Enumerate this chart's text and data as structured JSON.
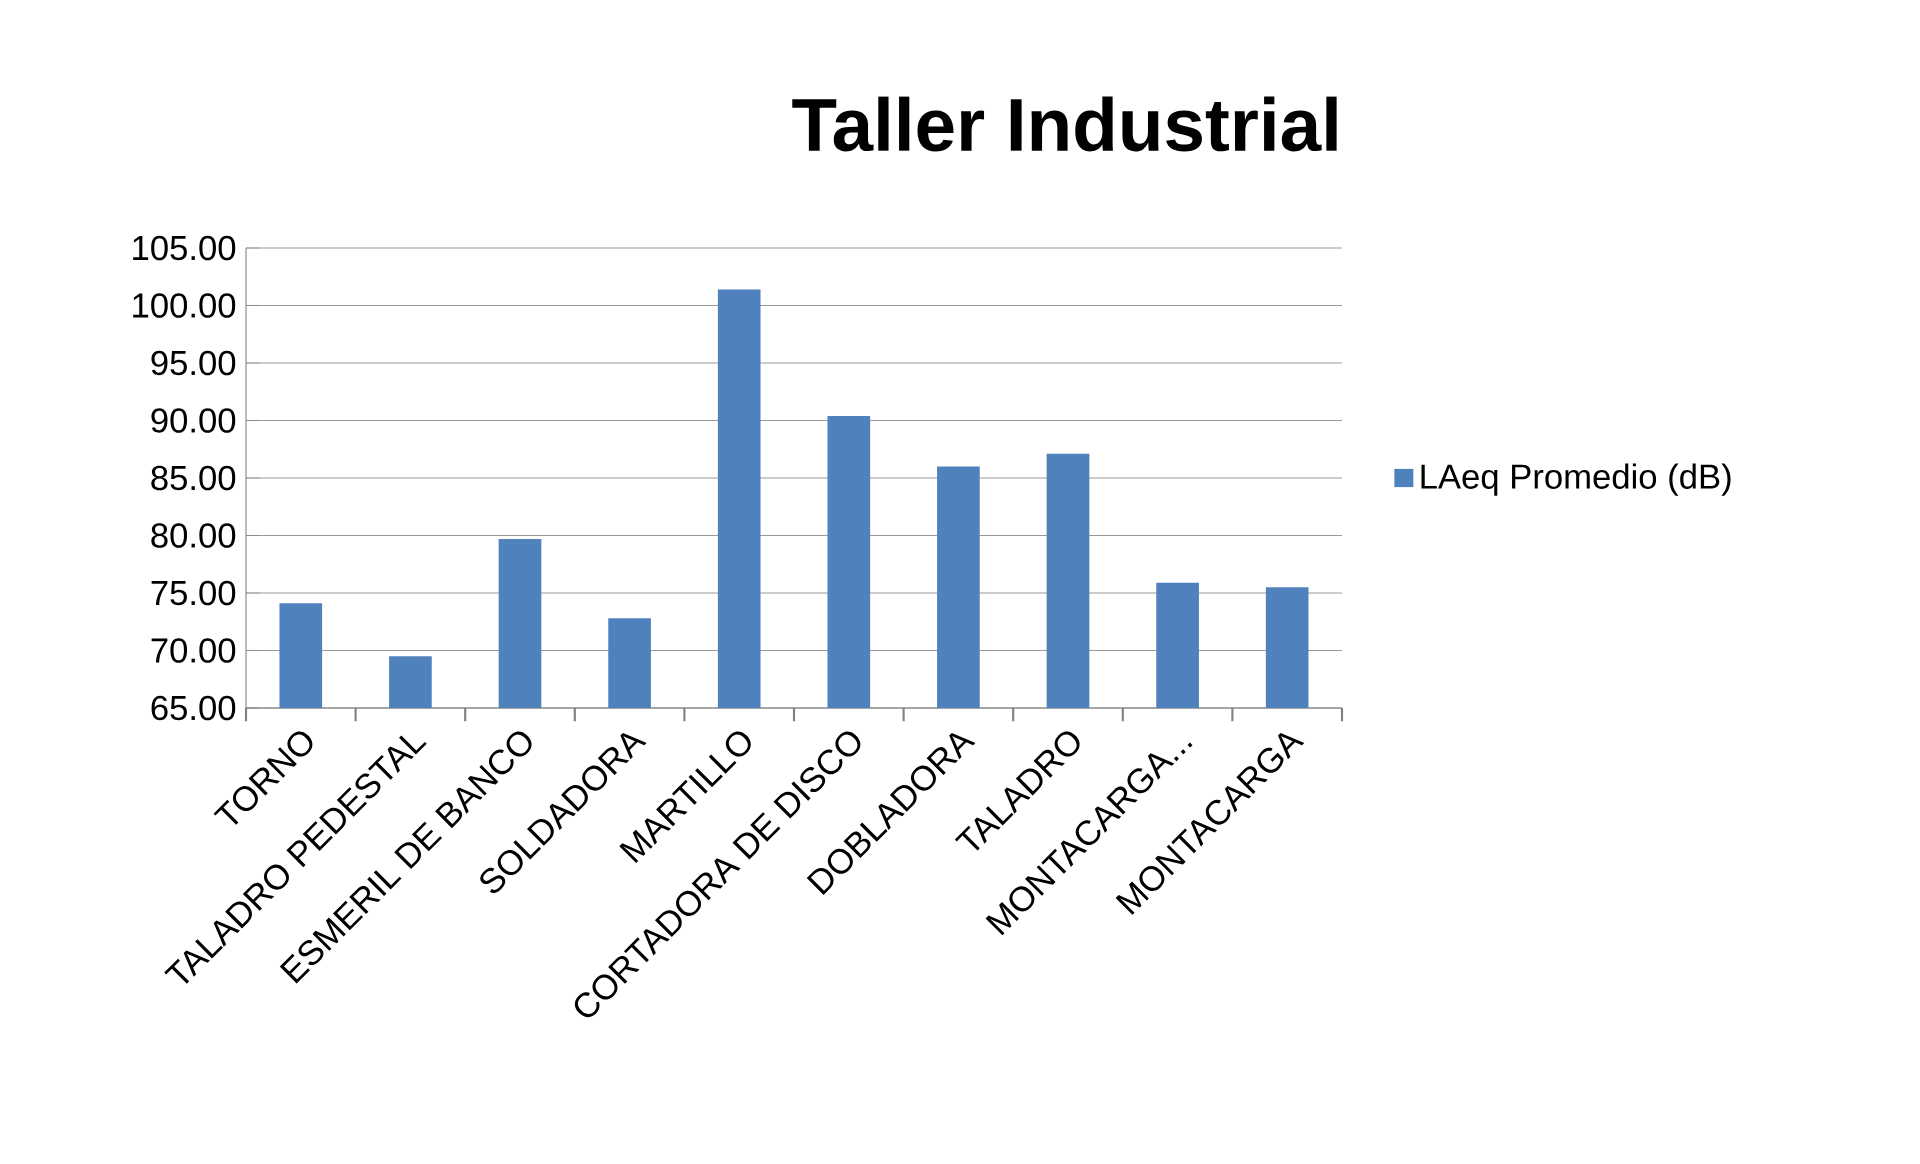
{
  "chart_data": {
    "type": "bar",
    "title": "Taller Industrial",
    "categories": [
      "TORNO",
      "TALADRO PEDESTAL",
      "ESMERIL DE BANCO",
      "SOLDADORA",
      "MARTILLO",
      "CORTADORA DE DISCO",
      "DOBLADORA",
      "TALADRO",
      "MONTACARGA...",
      "MONTACARGA"
    ],
    "series": [
      {
        "name": "LAeq Promedio (dB)",
        "color": "#4f81bd",
        "values": [
          74.1,
          69.5,
          79.7,
          72.8,
          101.4,
          90.4,
          86.0,
          87.1,
          75.9,
          75.5
        ]
      }
    ],
    "ylim": [
      65,
      105
    ],
    "yticks": [
      {
        "value": 65,
        "label": "65.00"
      },
      {
        "value": 70,
        "label": "70.00"
      },
      {
        "value": 75,
        "label": "75.00"
      },
      {
        "value": 80,
        "label": "80.00"
      },
      {
        "value": 85,
        "label": "85.00"
      },
      {
        "value": 90,
        "label": "90.00"
      },
      {
        "value": 95,
        "label": "95.00"
      },
      {
        "value": 100,
        "label": "100.00"
      },
      {
        "value": 105,
        "label": "105.00"
      }
    ],
    "grid": "y",
    "legend": "right"
  }
}
